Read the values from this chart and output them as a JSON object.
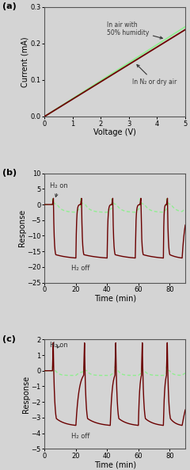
{
  "fig_width": 2.4,
  "fig_height": 5.93,
  "bg_color": "#d4d4d4",
  "panel_a": {
    "label": "(a)",
    "xlabel": "Voltage (V)",
    "ylabel": "Current (mA)",
    "xlim": [
      0,
      5
    ],
    "ylim": [
      0.0,
      0.3
    ],
    "yticks": [
      0.0,
      0.1,
      0.2,
      0.3
    ],
    "xticks": [
      0,
      1,
      2,
      3,
      4,
      5
    ],
    "line1_slope": 0.0476,
    "line1_color": "#6B0000",
    "line2_slope": 0.0492,
    "line2_color": "#90EE90",
    "ann1_text": "In N₂ or dry air",
    "ann2_text": "In air with\n50% humidity"
  },
  "panel_b": {
    "label": "(b)",
    "xlabel": "Time (min)",
    "ylabel": "Response",
    "xlim": [
      0,
      90
    ],
    "ylim": [
      -25,
      10
    ],
    "yticks": [
      -25,
      -20,
      -15,
      -10,
      -5,
      0,
      5,
      10
    ],
    "xticks": [
      0,
      20,
      40,
      60,
      80
    ],
    "h2_on_text": "H₂ on",
    "h2_off_text": "H₂ off",
    "solid_color": "#6B0000",
    "dashed_color": "#90EE90",
    "on_times": [
      5,
      23,
      43,
      61,
      78
    ],
    "off_times": [
      20,
      40,
      58,
      76,
      88
    ],
    "solid_peak": 2.0,
    "solid_min": -17.0,
    "green_peak": 1.8,
    "green_neg": -2.5
  },
  "panel_c": {
    "label": "(c)",
    "xlabel": "Time (min)",
    "ylabel": "Response",
    "xlim": [
      0,
      90
    ],
    "ylim": [
      -5,
      2
    ],
    "yticks": [
      -5,
      -4,
      -3,
      -2,
      -1,
      0,
      1,
      2
    ],
    "xticks": [
      0,
      20,
      40,
      60,
      80
    ],
    "h2_on_text": "H₂ on",
    "h2_off_text": "H₂ off",
    "solid_color": "#6B0000",
    "dashed_color": "#90EE90",
    "on_times": [
      5,
      25,
      45,
      62,
      78
    ],
    "off_times": [
      20,
      42,
      60,
      76,
      88
    ],
    "solid_peak": 1.8,
    "solid_min": -3.5,
    "green_peak": 0.25,
    "green_neg": -0.3
  }
}
